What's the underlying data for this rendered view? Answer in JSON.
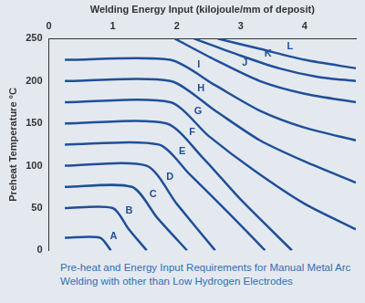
{
  "chart_data": {
    "type": "line",
    "x_label": "Welding Energy Input (kilojoule/mm of deposit)",
    "y_label": "Preheat Temperature °C",
    "caption": "Pre-heat and Energy Input Requirements for Manual Metal Arc Welding with other than Low Hydrogen Electrodes",
    "xlim": [
      0,
      4.8
    ],
    "xticks": [
      0,
      1,
      2,
      3,
      4
    ],
    "ylim": [
      0,
      250
    ],
    "yticks": [
      0,
      50,
      100,
      150,
      200,
      250
    ],
    "grid": false,
    "series": [
      {
        "name": "A",
        "color": "#1f4f9a",
        "x": [
          0.25,
          0.8,
          0.97
        ],
        "values": [
          15,
          15,
          0
        ]
      },
      {
        "name": "B",
        "color": "#1f4f9a",
        "x": [
          0.25,
          1.0,
          1.25,
          1.53
        ],
        "values": [
          50,
          50,
          25,
          0
        ]
      },
      {
        "name": "C",
        "color": "#1f4f9a",
        "x": [
          0.25,
          1.3,
          1.7,
          2.16
        ],
        "values": [
          75,
          75,
          38,
          0
        ]
      },
      {
        "name": "D",
        "color": "#1f4f9a",
        "x": [
          0.25,
          1.53,
          2.0,
          2.6
        ],
        "values": [
          100,
          100,
          55,
          0
        ]
      },
      {
        "name": "E",
        "color": "#1f4f9a",
        "x": [
          0.25,
          1.72,
          2.2,
          2.8,
          3.38
        ],
        "values": [
          125,
          125,
          90,
          45,
          0
        ]
      },
      {
        "name": "F",
        "color": "#1f4f9a",
        "x": [
          0.25,
          1.84,
          2.4,
          3.0,
          3.8
        ],
        "values": [
          150,
          150,
          110,
          60,
          0
        ]
      },
      {
        "name": "G",
        "color": "#1f4f9a",
        "x": [
          0.25,
          1.9,
          2.5,
          3.2,
          4.0,
          4.8
        ],
        "values": [
          175,
          175,
          135,
          95,
          55,
          25
        ]
      },
      {
        "name": "H",
        "color": "#1f4f9a",
        "x": [
          0.25,
          1.9,
          2.6,
          3.3,
          4.0,
          4.8
        ],
        "values": [
          200,
          200,
          165,
          130,
          105,
          80
        ]
      },
      {
        "name": "I",
        "color": "#1f4f9a",
        "x": [
          0.25,
          1.9,
          2.6,
          3.3,
          4.0,
          4.8
        ],
        "values": [
          225,
          225,
          195,
          165,
          145,
          130
        ]
      },
      {
        "name": "J",
        "color": "#1f4f9a",
        "x": [
          1.97,
          2.6,
          3.3,
          4.0,
          4.8
        ],
        "values": [
          250,
          225,
          200,
          185,
          175
        ]
      },
      {
        "name": "K",
        "color": "#1f4f9a",
        "x": [
          2.27,
          3.0,
          3.6,
          4.2,
          4.8
        ],
        "values": [
          250,
          230,
          215,
          205,
          200
        ]
      },
      {
        "name": "L",
        "color": "#1f4f9a",
        "x": [
          2.64,
          3.3,
          4.0,
          4.8
        ],
        "values": [
          250,
          238,
          225,
          215
        ]
      }
    ]
  }
}
